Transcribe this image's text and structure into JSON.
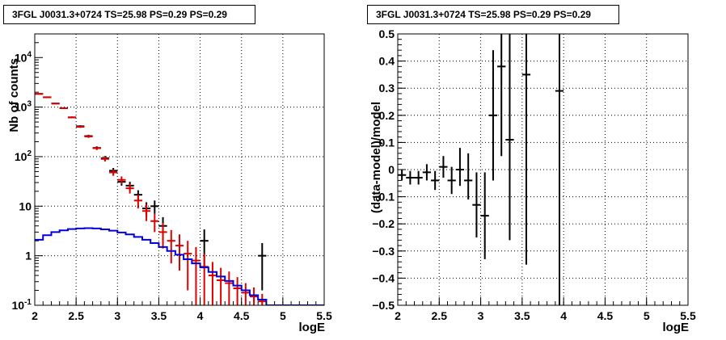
{
  "colors": {
    "data": "#000000",
    "model_sum": "#dd0000",
    "model_component": "#0000dd",
    "grid": "#000000"
  },
  "chart_data": [
    {
      "type": "scatter",
      "title": "3FGL J0031.3+0724 TS=25.98 PS=0.29 PS=0.29",
      "xlabel": "logE",
      "ylabel": "Nb of counts",
      "xlim": [
        2,
        5.5
      ],
      "ylim": [
        0.1,
        30000
      ],
      "log_y": true,
      "grid": true,
      "x_ticks": [
        "2",
        "2.5",
        "3",
        "3.5",
        "4",
        "4.5",
        "5",
        "5.5"
      ],
      "y_ticks": [
        "10^{-1}",
        "1",
        "10",
        "10^{2}",
        "10^{3}",
        "10^{4}"
      ],
      "series": [
        {
          "style": "black-crosses",
          "x": [
            2.05,
            2.15,
            2.25,
            2.35,
            2.45,
            2.55,
            2.65,
            2.75,
            2.85,
            2.95,
            3.05,
            3.15,
            3.25,
            3.35,
            3.45,
            3.55,
            4.05,
            4.75
          ],
          "y": [
            1850,
            1580,
            1180,
            950,
            620,
            410,
            260,
            150,
            93,
            52,
            31,
            26,
            17,
            9,
            10,
            4,
            2,
            1
          ],
          "yerr_low": [
            40,
            35,
            30,
            28,
            25,
            20,
            16,
            12,
            10,
            7,
            5,
            5,
            4,
            3,
            3,
            2,
            1.4,
            0.8
          ],
          "yerr_high": [
            40,
            35,
            30,
            28,
            25,
            20,
            16,
            12,
            10,
            7,
            5,
            5,
            4,
            3,
            3,
            2,
            1.4,
            0.8
          ]
        },
        {
          "style": "red-crosses",
          "x": [
            2.05,
            2.15,
            2.25,
            2.35,
            2.45,
            2.55,
            2.65,
            2.75,
            2.85,
            2.95,
            3.05,
            3.15,
            3.25,
            3.35,
            3.45,
            3.55,
            3.65,
            3.75,
            3.85,
            3.95,
            4.05,
            4.15,
            4.25,
            4.35,
            4.45,
            4.55,
            4.65,
            4.75
          ],
          "y": [
            1850,
            1580,
            1180,
            950,
            620,
            400,
            255,
            148,
            90,
            48,
            34,
            23,
            13,
            8,
            5,
            3,
            2,
            1.6,
            1.1,
            0.8,
            0.6,
            0.4,
            0.32,
            0.28,
            0.22,
            0.18,
            0.15,
            0.12
          ],
          "yerr_low": [
            40,
            35,
            30,
            28,
            25,
            20,
            16,
            12,
            10,
            7,
            6,
            5,
            4,
            3,
            2,
            1.6,
            1.3,
            1.1,
            0.9,
            0.7,
            0.5,
            0.35,
            0.25,
            0.2,
            0.15,
            0.1,
            0.08,
            0.05
          ],
          "yerr_high": [
            40,
            35,
            30,
            28,
            25,
            20,
            16,
            12,
            10,
            7,
            6,
            5,
            4,
            3,
            2,
            1.6,
            1.3,
            1.1,
            0.9,
            0.7,
            0.5,
            0.35,
            0.25,
            0.2,
            0.15,
            0.1,
            0.08,
            0.05
          ]
        },
        {
          "style": "blue-histogram",
          "x": [
            2.0,
            2.1,
            2.2,
            2.3,
            2.4,
            2.5,
            2.6,
            2.7,
            2.8,
            2.9,
            3.0,
            3.1,
            3.2,
            3.3,
            3.4,
            3.5,
            3.6,
            3.7,
            3.8,
            3.9,
            4.0,
            4.1,
            4.2,
            4.3,
            4.4,
            4.5,
            4.6,
            4.7,
            4.8,
            4.9,
            5.0,
            5.1,
            5.2,
            5.3,
            5.4
          ],
          "y": [
            2.1,
            2.6,
            3.0,
            3.25,
            3.45,
            3.55,
            3.6,
            3.55,
            3.4,
            3.2,
            2.95,
            2.7,
            2.4,
            2.1,
            1.8,
            1.5,
            1.25,
            1.05,
            0.85,
            0.7,
            0.58,
            0.47,
            0.38,
            0.31,
            0.25,
            0.2,
            0.16,
            0.13,
            0.1,
            0.1,
            0.1,
            0.1,
            0.1,
            0.1,
            0.1
          ]
        }
      ]
    },
    {
      "type": "scatter",
      "title": "3FGL J0031.3+0724 TS=25.98 PS=0.29 PS=0.29",
      "xlabel": "logE",
      "ylabel": "(data-model)/model",
      "xlim": [
        2,
        5.5
      ],
      "ylim": [
        -0.5,
        0.5
      ],
      "grid": true,
      "x_ticks": [
        "2",
        "2.5",
        "3",
        "3.5",
        "4",
        "4.5",
        "5",
        "5.5"
      ],
      "y_ticks": [
        "−0.5",
        "−0.4",
        "−0.3",
        "−0.2",
        "−0.1",
        "0",
        "0.1",
        "0.2",
        "0.3",
        "0.4",
        "0.5"
      ],
      "series": [
        {
          "style": "black-crosses",
          "x": [
            2.05,
            2.15,
            2.25,
            2.35,
            2.45,
            2.55,
            2.65,
            2.75,
            2.85,
            2.95,
            3.05,
            3.15,
            3.25,
            3.35,
            3.55,
            3.95
          ],
          "y": [
            -0.02,
            -0.03,
            -0.03,
            -0.01,
            -0.04,
            0.01,
            -0.04,
            0.0,
            -0.04,
            -0.13,
            -0.17,
            0.2,
            0.38,
            0.11,
            0.35,
            0.29
          ],
          "yerr_low": [
            0.02,
            0.025,
            0.025,
            0.03,
            0.035,
            0.04,
            0.05,
            0.06,
            0.07,
            0.12,
            0.16,
            0.24,
            0.33,
            0.37,
            0.7,
            0.79
          ],
          "yerr_high": [
            0.02,
            0.025,
            0.025,
            0.03,
            0.035,
            0.04,
            0.05,
            0.08,
            0.1,
            0.12,
            0.16,
            0.24,
            0.33,
            0.4,
            0.15,
            0.21
          ]
        }
      ]
    }
  ]
}
